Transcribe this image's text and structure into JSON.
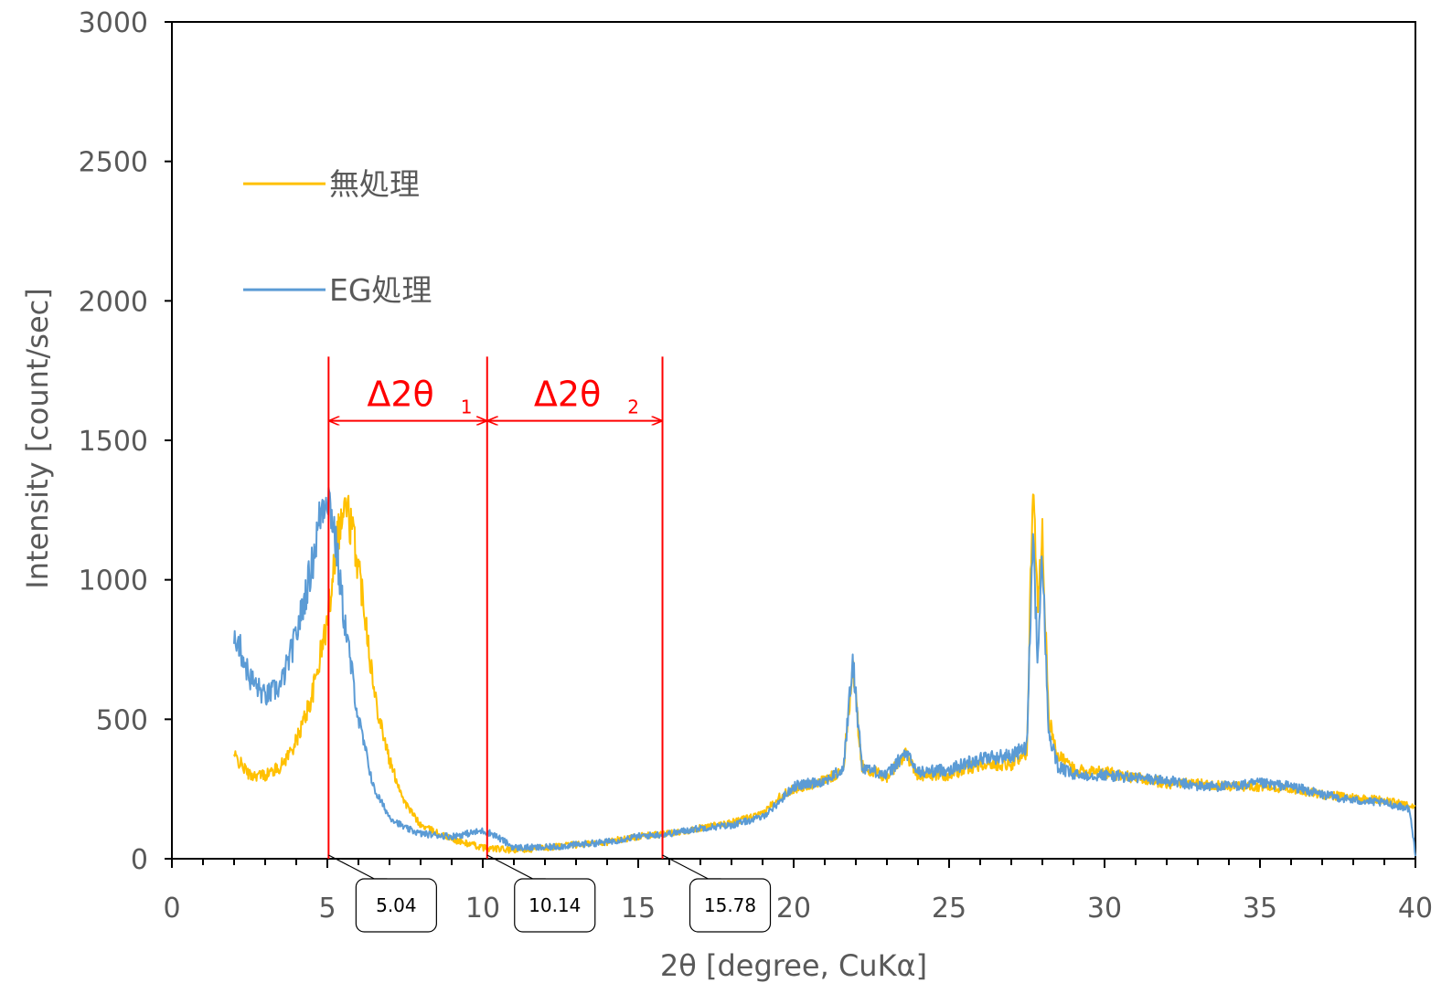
{
  "chart_data": {
    "type": "line",
    "xlabel": "2θ [degree, CuKα]",
    "ylabel": "Intensity [count/sec]",
    "xlim": [
      0,
      40
    ],
    "ylim": [
      0,
      3000
    ],
    "xticks": [
      "0",
      "5",
      "10",
      "15",
      "20",
      "25",
      "30",
      "35",
      "40"
    ],
    "yticks": [
      "0",
      "500",
      "1000",
      "1500",
      "2000",
      "2500",
      "3000"
    ],
    "grid": false,
    "legend_position": "top-left",
    "series": [
      {
        "name": "無処理",
        "color": "#ffc000",
        "x": [
          2,
          2.5,
          3,
          3.5,
          4,
          4.5,
          5,
          5.3,
          5.6,
          5.9,
          6.2,
          6.5,
          7,
          7.5,
          8,
          9,
          10,
          11,
          12,
          13,
          14,
          15,
          16,
          17,
          18,
          19,
          19.5,
          20,
          21,
          21.6,
          21.9,
          22.2,
          23,
          23.6,
          24,
          25,
          26,
          27,
          27.5,
          27.7,
          27.85,
          28,
          28.2,
          28.5,
          29,
          30,
          31,
          32,
          33,
          34,
          35,
          36,
          37,
          38,
          39,
          39.8,
          40
        ],
        "y": [
          370,
          300,
          300,
          330,
          420,
          580,
          850,
          1150,
          1270,
          1120,
          900,
          600,
          350,
          200,
          120,
          70,
          40,
          30,
          40,
          50,
          60,
          80,
          90,
          110,
          130,
          160,
          220,
          250,
          280,
          320,
          690,
          330,
          290,
          380,
          300,
          300,
          340,
          340,
          380,
          1380,
          900,
          1190,
          500,
          370,
          320,
          310,
          290,
          270,
          270,
          260,
          260,
          250,
          230,
          220,
          210,
          190,
          180
        ]
      },
      {
        "name": "EG処理",
        "color": "#5b9bd5",
        "x": [
          2,
          2.5,
          3,
          3.5,
          4,
          4.5,
          4.8,
          5,
          5.2,
          5.5,
          6,
          6.5,
          7,
          7.5,
          8,
          9,
          10,
          10.3,
          11,
          12,
          13,
          14,
          15,
          16,
          17,
          18,
          19,
          19.5,
          20,
          21,
          21.6,
          21.9,
          22.2,
          23,
          23.6,
          24,
          25,
          26,
          27,
          27.5,
          27.7,
          27.85,
          28,
          28.2,
          28.5,
          29,
          30,
          31,
          32,
          33,
          34,
          35,
          36,
          37,
          38,
          39,
          39.8,
          40
        ],
        "y": [
          820,
          650,
          580,
          620,
          800,
          1050,
          1250,
          1320,
          1200,
          900,
          500,
          250,
          150,
          110,
          90,
          80,
          100,
          90,
          40,
          40,
          50,
          60,
          80,
          90,
          110,
          120,
          150,
          200,
          260,
          280,
          320,
          710,
          330,
          300,
          380,
          310,
          320,
          360,
          370,
          400,
          1180,
          700,
          1090,
          450,
          330,
          300,
          300,
          290,
          280,
          260,
          260,
          270,
          260,
          230,
          210,
          200,
          180,
          20
        ]
      }
    ],
    "annotations": {
      "vlines": [
        5.04,
        10.14,
        15.78
      ],
      "vline_ymin": 0,
      "vline_ymax": 1800,
      "arrow_y": 1570,
      "color": "#ff0000",
      "spans": [
        {
          "from": 5.04,
          "to": 10.14,
          "label": "Δ2θ",
          "sub": "1"
        },
        {
          "from": 10.14,
          "to": 15.78,
          "label": "Δ2θ",
          "sub": "2"
        }
      ],
      "callouts": [
        {
          "at": 5.04,
          "text": "5.04"
        },
        {
          "at": 10.14,
          "text": "10.14"
        },
        {
          "at": 15.78,
          "text": "15.78"
        }
      ]
    }
  }
}
